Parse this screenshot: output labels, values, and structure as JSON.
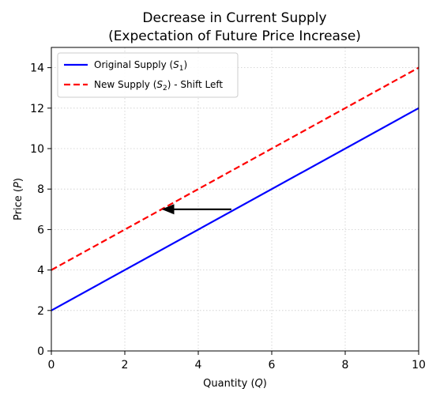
{
  "chart_data": {
    "type": "line",
    "title": [
      "Decrease in Current Supply",
      "(Expectation of Future Price Increase)"
    ],
    "xlabel": "Quantity (Q)",
    "ylabel": "Price (P)",
    "xlim": [
      0,
      10
    ],
    "ylim": [
      0,
      15
    ],
    "xticks": [
      0,
      2,
      4,
      6,
      8,
      10
    ],
    "yticks": [
      0,
      2,
      4,
      6,
      8,
      10,
      12,
      14
    ],
    "grid": true,
    "legend_position": "top-left",
    "series": [
      {
        "name": "Original Supply (S1)",
        "x": [
          0,
          10
        ],
        "y": [
          2,
          12
        ],
        "color": "#0000ff",
        "style": "solid"
      },
      {
        "name": "New Supply (S2) - Shift Left",
        "x": [
          0,
          10
        ],
        "y": [
          4,
          14
        ],
        "color": "#ff0000",
        "style": "dashed"
      }
    ],
    "annotations": [
      {
        "type": "arrow",
        "from": [
          4.9,
          7
        ],
        "to": [
          3,
          7
        ],
        "color": "#000000"
      }
    ]
  }
}
